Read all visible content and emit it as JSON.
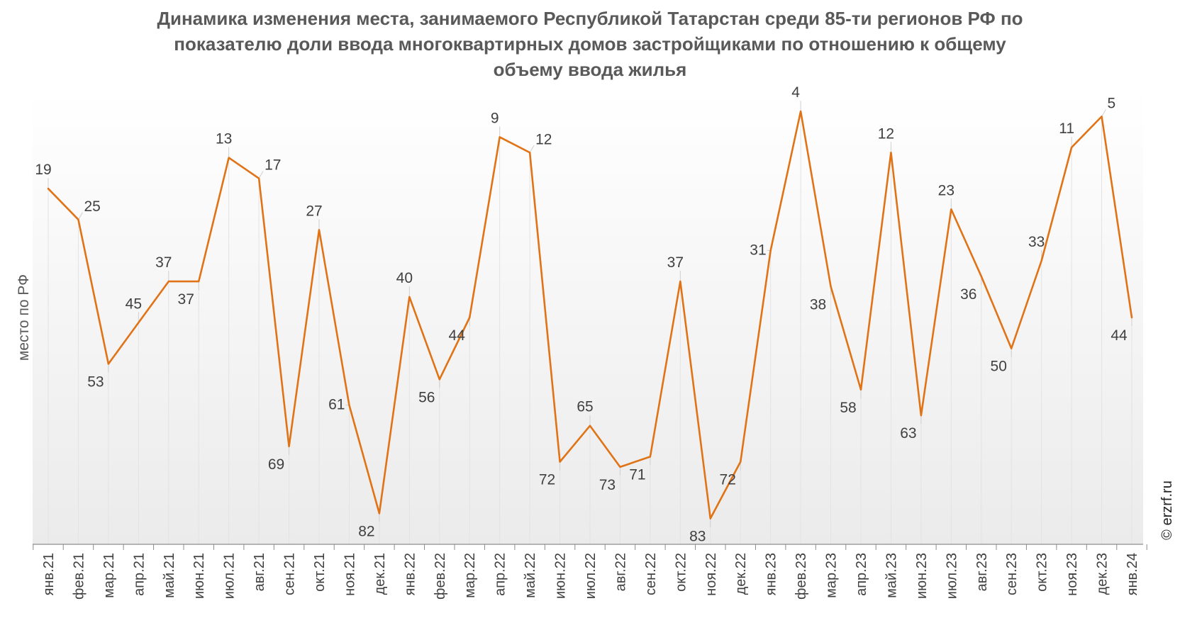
{
  "chart_data": {
    "type": "line",
    "title_lines": [
      "Динамика изменения места, занимаемого Республикой Татарстан среди 85-ти регионов РФ по",
      "показателю доли ввода многоквартирных домов застройщиками по отношению к общему",
      "объему ввода жилья"
    ],
    "ylabel": "место по РФ",
    "xlabel": "",
    "y_reversed": true,
    "ylim": [
      0,
      88
    ],
    "grid": "vertical",
    "categories": [
      "янв.21",
      "фев.21",
      "мар.21",
      "апр.21",
      "май.21",
      "июн.21",
      "июл.21",
      "авг.21",
      "сен.21",
      "окт.21",
      "ноя.21",
      "дек.21",
      "янв.22",
      "фев.22",
      "мар.22",
      "апр.22",
      "май.22",
      "июн.22",
      "июл.22",
      "авг.22",
      "сен.22",
      "окт.22",
      "ноя.22",
      "дек.22",
      "янв.23",
      "фев.23",
      "мар.23",
      "апр.23",
      "май.23",
      "июн.23",
      "июл.23",
      "авг.23",
      "сен.23",
      "окт.23",
      "ноя.23",
      "дек.23",
      "янв.24"
    ],
    "series": [
      {
        "color": "#E07316",
        "values": [
          19,
          25,
          53,
          45,
          37,
          37,
          13,
          17,
          69,
          27,
          61,
          82,
          40,
          56,
          44,
          9,
          12,
          72,
          65,
          73,
          71,
          37,
          83,
          72,
          31,
          4,
          38,
          58,
          12,
          63,
          23,
          36,
          50,
          33,
          11,
          5,
          44
        ]
      }
    ],
    "label_positions": [
      "above",
      "right",
      "below",
      "above",
      "above",
      "below",
      "above",
      "right",
      "below",
      "above",
      "left",
      "below",
      "above",
      "below",
      "below",
      "above",
      "right",
      "below",
      "above",
      "below",
      "below",
      "above",
      "below",
      "below",
      "left",
      "above",
      "below",
      "below",
      "above",
      "below",
      "above",
      "below",
      "below",
      "above",
      "above",
      "right",
      "below"
    ]
  },
  "watermark": "© erzrf.ru"
}
